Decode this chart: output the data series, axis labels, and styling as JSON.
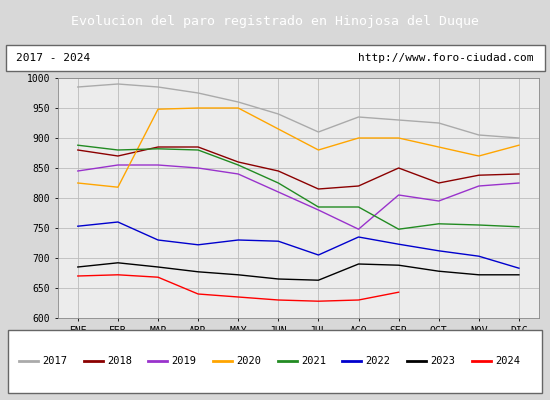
{
  "title": "Evolucion del paro registrado en Hinojosa del Duque",
  "subtitle_left": "2017 - 2024",
  "subtitle_right": "http://www.foro-ciudad.com",
  "title_bg": "#3c7abf",
  "title_color": "white",
  "months": [
    "ENE",
    "FEB",
    "MAR",
    "ABR",
    "MAY",
    "JUN",
    "JUL",
    "AGO",
    "SEP",
    "OCT",
    "NOV",
    "DIC"
  ],
  "ylim": [
    600,
    1000
  ],
  "yticks": [
    600,
    650,
    700,
    750,
    800,
    850,
    900,
    950,
    1000
  ],
  "series": {
    "2017": {
      "color": "#aaaaaa",
      "data": [
        985,
        990,
        985,
        975,
        960,
        940,
        910,
        935,
        930,
        925,
        905,
        900
      ]
    },
    "2018": {
      "color": "#8b0000",
      "data": [
        880,
        870,
        885,
        885,
        860,
        845,
        815,
        820,
        850,
        825,
        838,
        840
      ]
    },
    "2019": {
      "color": "#9932cc",
      "data": [
        845,
        855,
        855,
        850,
        840,
        810,
        780,
        748,
        805,
        795,
        820,
        825
      ]
    },
    "2020": {
      "color": "#ffa500",
      "data": [
        825,
        818,
        948,
        950,
        950,
        915,
        880,
        900,
        900,
        885,
        870,
        888
      ]
    },
    "2021": {
      "color": "#228b22",
      "data": [
        888,
        880,
        882,
        880,
        855,
        825,
        785,
        785,
        748,
        757,
        755,
        752
      ]
    },
    "2022": {
      "color": "#0000cd",
      "data": [
        753,
        760,
        730,
        722,
        730,
        728,
        705,
        735,
        723,
        712,
        703,
        683
      ]
    },
    "2023": {
      "color": "#000000",
      "data": [
        685,
        692,
        685,
        677,
        672,
        665,
        663,
        690,
        688,
        678,
        672,
        672
      ]
    },
    "2024": {
      "color": "#ff0000",
      "data": [
        670,
        672,
        668,
        640,
        635,
        630,
        628,
        630,
        643,
        null,
        null,
        null
      ]
    }
  },
  "legend_order": [
    "2017",
    "2018",
    "2019",
    "2020",
    "2021",
    "2022",
    "2023",
    "2024"
  ],
  "bg_color": "#d8d8d8",
  "plot_bg": "#ececec",
  "subtitle_box_color": "#d8d8d8",
  "grid_color": "#bbbbbb"
}
